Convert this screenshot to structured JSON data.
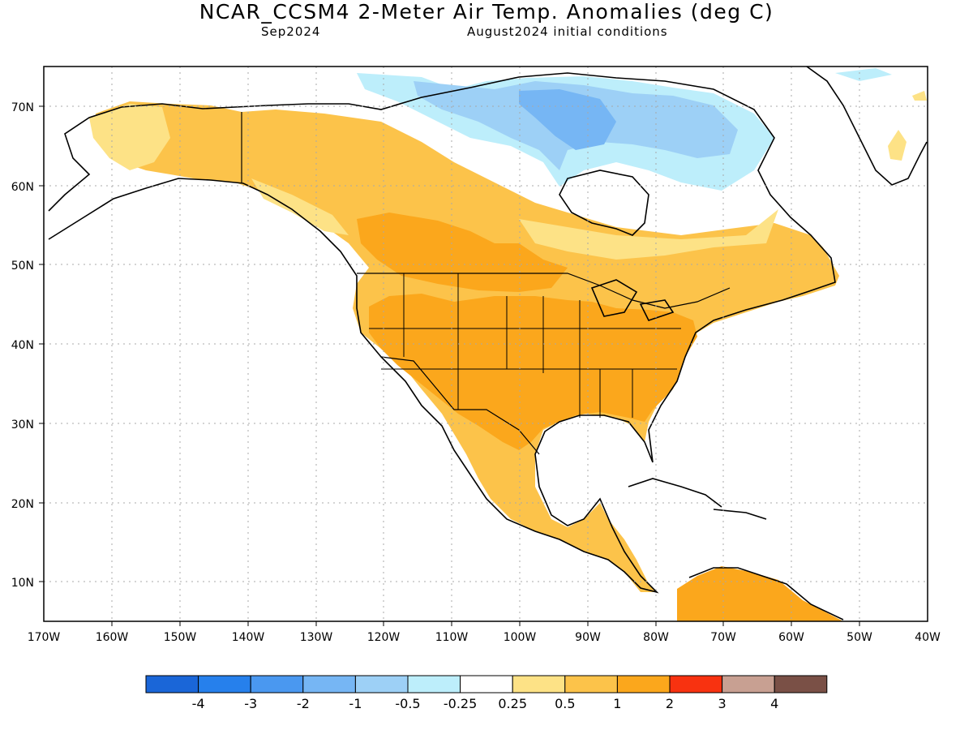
{
  "title": "NCAR_CCSM4 2-Meter Air Temp. Anomalies (deg C)",
  "subtitle_left": "Sep2024",
  "subtitle_right": "August2024 initial conditions",
  "axes": {
    "lat_labels": [
      "70N",
      "60N",
      "50N",
      "40N",
      "30N",
      "20N",
      "10N"
    ],
    "lon_labels": [
      "170W",
      "160W",
      "150W",
      "140W",
      "130W",
      "120W",
      "110W",
      "100W",
      "90W",
      "80W",
      "70W",
      "60W",
      "50W",
      "40W"
    ]
  },
  "legend": {
    "colors": [
      "#1a66d8",
      "#2680ec",
      "#4a98f0",
      "#76b6f4",
      "#9dd0f6",
      "#bdeefb",
      "#ffffff",
      "#fde286",
      "#fcc34a",
      "#fba71c",
      "#f83210",
      "#c8a092",
      "#7a5046"
    ],
    "labels": [
      "-4",
      "-3",
      "-2",
      "-1",
      "-0.5",
      "-0.25",
      "0.25",
      "0.5",
      "1",
      "2",
      "3",
      "4"
    ]
  },
  "map_colors": {
    "anom_0_5_1": "#fcc34a",
    "anom_1_2": "#fba71c",
    "anom_0_25_0_5": "#fde286",
    "anom_neg_0_25_neg_0_5": "#bdeefb",
    "anom_neg_0_5_neg_1": "#9dd0f6",
    "anom_neg_1_neg_2": "#76b6f4"
  }
}
